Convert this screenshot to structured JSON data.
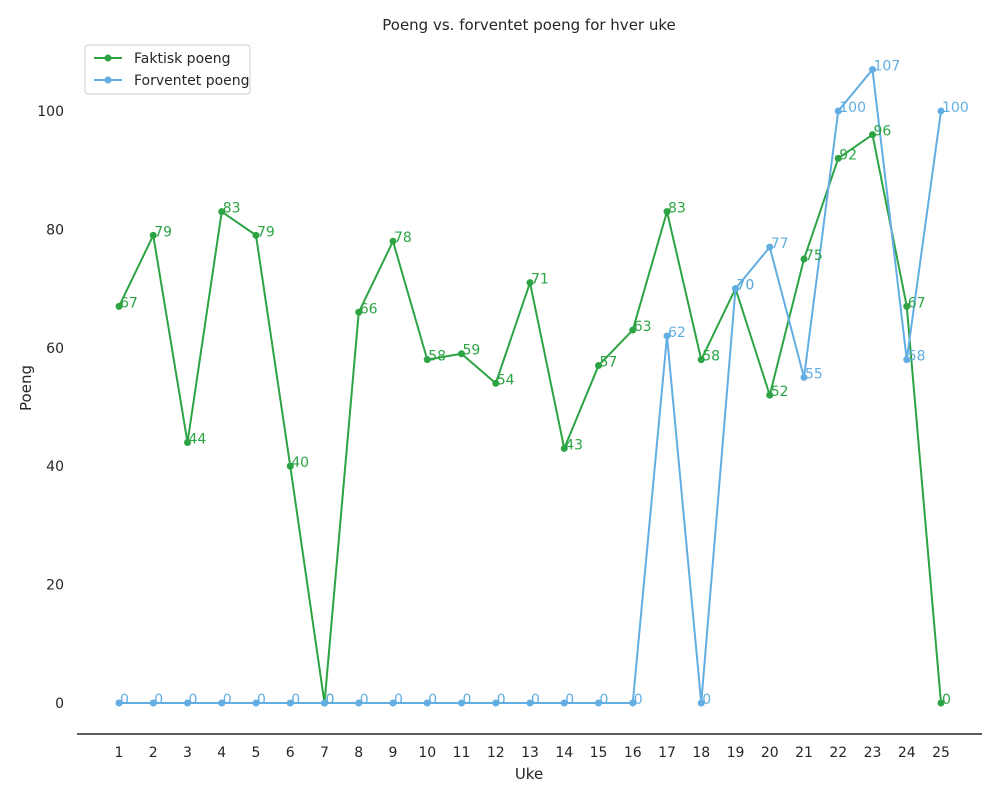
{
  "chart_data": {
    "type": "line",
    "title": "Poeng vs. forventet poeng for hver uke",
    "xlabel": "Uke",
    "ylabel": "Poeng",
    "categories": [
      "1",
      "2",
      "3",
      "4",
      "5",
      "6",
      "7",
      "8",
      "9",
      "10",
      "11",
      "12",
      "13",
      "14",
      "15",
      "16",
      "17",
      "18",
      "19",
      "20",
      "21",
      "22",
      "23",
      "24",
      "25"
    ],
    "ylim": [
      -5,
      112
    ],
    "yticks": [
      0,
      20,
      40,
      60,
      80,
      100
    ],
    "grid": false,
    "legend_position": "top-left",
    "series": [
      {
        "name": "Faktisk poeng",
        "color": "#2ca444",
        "values": [
          67,
          79,
          44,
          83,
          79,
          40,
          0,
          66,
          78,
          58,
          59,
          54,
          71,
          43,
          57,
          63,
          83,
          58,
          70,
          52,
          75,
          92,
          96,
          67,
          0
        ]
      },
      {
        "name": "Forventet poeng",
        "color": "#62aee2",
        "values": [
          0,
          0,
          0,
          0,
          0,
          0,
          0,
          0,
          0,
          0,
          0,
          0,
          0,
          0,
          0,
          0,
          62,
          0,
          70,
          77,
          55,
          100,
          107,
          58,
          100
        ]
      }
    ]
  }
}
